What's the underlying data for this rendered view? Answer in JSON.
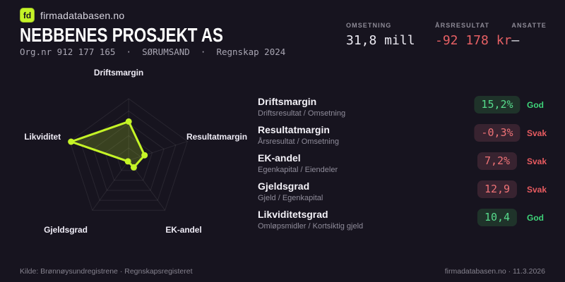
{
  "brand": {
    "logo": "fd",
    "site": "firmadatabasen.no"
  },
  "header": {
    "company": "NEBBENES PROSJEKT AS",
    "meta": "Org.nr 912 177 165  ·  SØRUMSAND  ·  Regnskap 2024"
  },
  "stats": [
    {
      "label": "OMSETNING",
      "value": "31,8 mill",
      "tone": "neutral"
    },
    {
      "label": "ÅRSRESULTAT",
      "value": "-92 178 kr",
      "tone": "negative"
    },
    {
      "label": "ANSATTE",
      "value": "–",
      "tone": "neutral"
    }
  ],
  "chart_data": {
    "type": "radar",
    "axes": [
      "Driftsmargin",
      "Resultatmargin",
      "EK-andel",
      "Gjeldsgrad",
      "Likviditet"
    ],
    "values_fraction": [
      0.63,
      0.27,
      0.14,
      0.02,
      0.98
    ],
    "values_display": [
      "15,2%",
      "-0,3%",
      "7,2%",
      "12,9",
      "10,4"
    ],
    "rings": 5,
    "ring_step_fraction": 0.2,
    "legend": "none",
    "line_color": "#c5f427",
    "fill_color": "rgba(197,244,39,0.20)",
    "grid_color": "rgba(255,255,255,0.08)"
  },
  "metrics": [
    {
      "name": "Driftsmargin",
      "formula": "Driftsresultat / Omsetning",
      "value": "15,2%",
      "rating": "God",
      "tone": "good"
    },
    {
      "name": "Resultatmargin",
      "formula": "Årsresultat / Omsetning",
      "value": "-0,3%",
      "rating": "Svak",
      "tone": "bad"
    },
    {
      "name": "EK-andel",
      "formula": "Egenkapital / Eiendeler",
      "value": "7,2%",
      "rating": "Svak",
      "tone": "bad"
    },
    {
      "name": "Gjeldsgrad",
      "formula": "Gjeld / Egenkapital",
      "value": "12,9",
      "rating": "Svak",
      "tone": "bad"
    },
    {
      "name": "Likviditetsgrad",
      "formula": "Omløpsmidler / Kortsiktig gjeld",
      "value": "10,4",
      "rating": "God",
      "tone": "good"
    }
  ],
  "footer": {
    "source": "Kilde: Brønnøysundregistrene · Regnskapsregisteret",
    "site_date": "firmadatabasen.no · 11.3.2026"
  },
  "colors": {
    "background": "#17141f",
    "accent": "#c5f427",
    "positive": "#3ed379",
    "negative": "#e66064",
    "pill_good_bg": "#1f332a",
    "pill_good_text": "#57db8c",
    "pill_bad_bg": "#382330",
    "pill_bad_text": "#ee7276"
  }
}
